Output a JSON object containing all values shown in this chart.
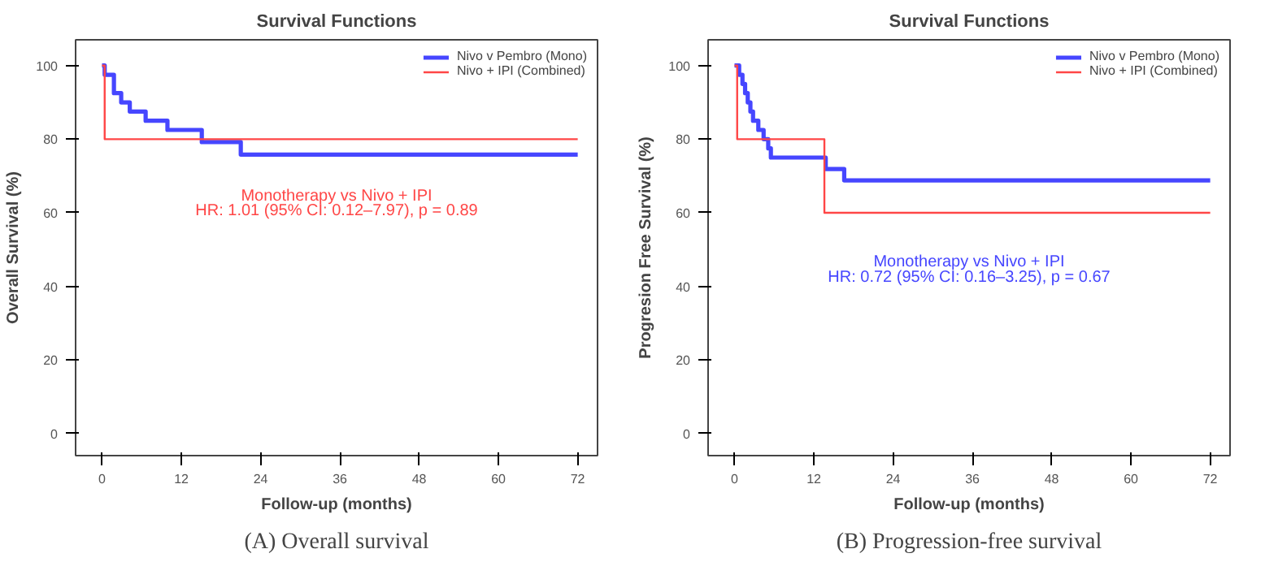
{
  "chart_data": [
    {
      "type": "step",
      "title": "Survival Functions",
      "xlabel": "Follow-up (months)",
      "ylabel": "Overall Survival (%)",
      "xlim": [
        -4,
        75
      ],
      "ylim": [
        -6,
        107
      ],
      "xticks": [
        0,
        12,
        24,
        36,
        48,
        60,
        72
      ],
      "yticks": [
        0,
        20,
        40,
        60,
        80,
        100
      ],
      "grid": false,
      "legend": "top right",
      "series": [
        {
          "name": "Nivo v Pembro (Mono)",
          "color": "#4646ff",
          "x": [
            0,
            0.4,
            1.8,
            2.9,
            4.2,
            6.6,
            9.9,
            15.1,
            21,
            72
          ],
          "values": [
            100,
            97.5,
            92.5,
            90,
            87.5,
            85,
            82.5,
            79.2,
            75.8,
            75.8
          ]
        },
        {
          "name": "Nivo + IPI (Combined)",
          "color": "#ff4646",
          "x": [
            0,
            0.4,
            72
          ],
          "values": [
            100,
            80,
            80
          ]
        }
      ],
      "annotations": [
        "Monotherapy vs Nivo + IPI",
        "HR: 1.01 (95% CI: 0.12–7.97), p = 0.89",
        "(A) Overall survival"
      ]
    },
    {
      "type": "step",
      "title": "Survival Functions",
      "xlabel": "Follow-up (months)",
      "ylabel": "Progresion Free Survival (%)",
      "xlim": [
        -4,
        75
      ],
      "ylim": [
        -6,
        107
      ],
      "xticks": [
        0,
        12,
        24,
        36,
        48,
        60,
        72
      ],
      "yticks": [
        0,
        20,
        40,
        60,
        80,
        100
      ],
      "grid": false,
      "legend": "top right",
      "series": [
        {
          "name": "Nivo v Pembro (Mono)",
          "color": "#4646ff",
          "x": [
            0,
            0.7,
            1.2,
            1.6,
            2,
            2.4,
            2.8,
            3.6,
            4.4,
            5.1,
            5.5,
            13.8,
            16.6,
            72
          ],
          "values": [
            100,
            97.5,
            95,
            92.5,
            90,
            87.5,
            85,
            82.5,
            80,
            77.5,
            75,
            71.9,
            68.8,
            68.8
          ]
        },
        {
          "name": "Nivo + IPI (Combined)",
          "color": "#ff4646",
          "x": [
            0,
            0.4,
            13.6,
            72
          ],
          "values": [
            100,
            80,
            60,
            60
          ]
        }
      ],
      "annotations": [
        "Monotherapy vs Nivo + IPI",
        "HR: 0.72 (95% CI: 0.16–3.25), p = 0.67",
        "(B) Progression-free survival"
      ]
    }
  ]
}
